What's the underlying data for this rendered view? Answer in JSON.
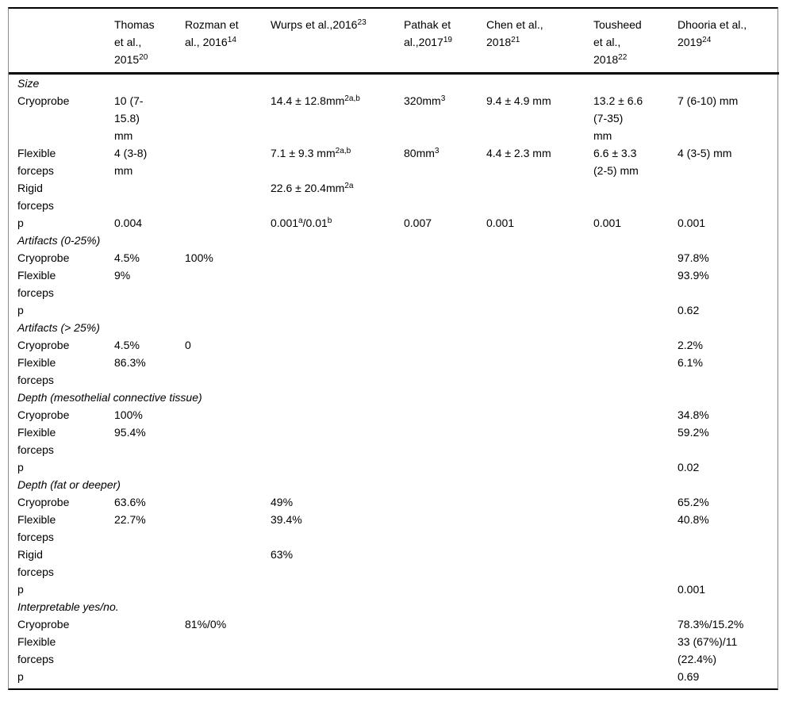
{
  "colors": {
    "text": "#000000",
    "heavy_rule": "#000000",
    "side_rule": "#8a8a8a",
    "background": "#ffffff"
  },
  "table": {
    "corner_label": "",
    "columns": [
      "Thomas\net al.,\n2015^{20}",
      "Rozman et\nal., 2016^{14}",
      "Wurps et al.,2016^{23}",
      "Pathak et\nal.,2017^{19}",
      "Chen et al.,\n2018^{21}",
      "Tousheed\net al.,\n2018^{22}",
      "Dhooria et al.,\n2019^{24}"
    ],
    "rows": [
      {
        "type": "section",
        "label": "Size"
      },
      {
        "type": "data",
        "label": "Cryoprobe",
        "values": [
          "10 (7-\n15.8)\nmm",
          "",
          "14.4 ± 12.8mm^{2a,b}",
          "320mm^{3}",
          "9.4 ± 4.9 mm",
          "13.2 ± 6.6\n(7-35)\nmm",
          "7 (6-10) mm"
        ]
      },
      {
        "type": "data",
        "label": "Flexible\nforceps",
        "values": [
          "4 (3-8)\nmm",
          "",
          "7.1 ± 9.3 mm^{2a,b}",
          "80mm^{3}",
          "4.4 ± 2.3 mm",
          "6.6 ± 3.3\n(2-5) mm",
          "4 (3-5) mm"
        ]
      },
      {
        "type": "data",
        "label": "Rigid\nforceps",
        "values": [
          "",
          "",
          "22.6 ± 20.4mm^{2a}",
          "",
          "",
          "",
          ""
        ]
      },
      {
        "type": "data",
        "label": "p",
        "values": [
          "0.004",
          "",
          "0.001^{a}/0.01^{b}",
          "0.007",
          "0.001",
          "0.001",
          "0.001"
        ]
      },
      {
        "type": "section",
        "label": "Artifacts (0-25%)"
      },
      {
        "type": "data",
        "label": "Cryoprobe",
        "values": [
          "4.5%",
          "100%",
          "",
          "",
          "",
          "",
          "97.8%"
        ]
      },
      {
        "type": "data",
        "label": "Flexible\nforceps",
        "values": [
          "9%",
          "",
          "",
          "",
          "",
          "",
          "93.9%"
        ]
      },
      {
        "type": "data",
        "label": "p",
        "values": [
          "",
          "",
          "",
          "",
          "",
          "",
          "0.62"
        ]
      },
      {
        "type": "section",
        "label": "Artifacts (> 25%)"
      },
      {
        "type": "data",
        "label": "Cryoprobe",
        "values": [
          "4.5%",
          "0",
          "",
          "",
          "",
          "",
          "2.2%"
        ]
      },
      {
        "type": "data",
        "label": "Flexible\nforceps",
        "values": [
          "86.3%",
          "",
          "",
          "",
          "",
          "",
          "6.1%"
        ]
      },
      {
        "type": "section",
        "label": "Depth (mesothelial connective tissue)"
      },
      {
        "type": "data",
        "label": "Cryoprobe",
        "values": [
          "100%",
          "",
          "",
          "",
          "",
          "",
          "34.8%"
        ]
      },
      {
        "type": "data",
        "label": "Flexible\nforceps",
        "values": [
          "95.4%",
          "",
          "",
          "",
          "",
          "",
          "59.2%"
        ]
      },
      {
        "type": "data",
        "label": "p",
        "values": [
          "",
          "",
          "",
          "",
          "",
          "",
          "0.02"
        ]
      },
      {
        "type": "section",
        "label": "Depth (fat or deeper)"
      },
      {
        "type": "data",
        "label": "Cryoprobe",
        "values": [
          "63.6%",
          "",
          "49%",
          "",
          "",
          "",
          "65.2%"
        ]
      },
      {
        "type": "data",
        "label": "Flexible\nforceps",
        "values": [
          "22.7%",
          "",
          "39.4%",
          "",
          "",
          "",
          "40.8%"
        ]
      },
      {
        "type": "data",
        "label": "Rigid\nforceps",
        "values": [
          "",
          "",
          "63%",
          "",
          "",
          "",
          ""
        ]
      },
      {
        "type": "data",
        "label": "p",
        "values": [
          "",
          "",
          "",
          "",
          "",
          "",
          "0.001"
        ]
      },
      {
        "type": "section",
        "label": "Interpretable yes/no."
      },
      {
        "type": "data",
        "label": "Cryoprobe",
        "values": [
          "",
          "81%/0%",
          "",
          "",
          "",
          "",
          "78.3%/15.2%"
        ]
      },
      {
        "type": "data",
        "label": "Flexible\nforceps",
        "values": [
          "",
          "",
          "",
          "",
          "",
          "",
          "33 (67%)/11\n(22.4%)"
        ]
      },
      {
        "type": "data",
        "label": "p",
        "values": [
          "",
          "",
          "",
          "",
          "",
          "",
          "0.69"
        ]
      }
    ]
  }
}
